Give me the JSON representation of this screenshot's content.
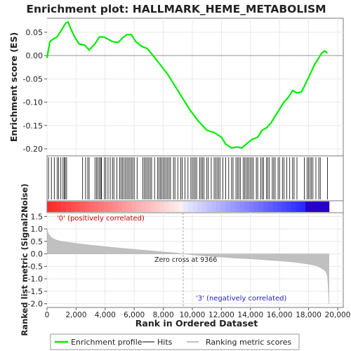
{
  "title": "Enrichment plot: HALLMARK_HEME_METABOLISM",
  "top_ylabel": "Enrichment score (ES)",
  "bottom_ylabel": "Ranked list metric (Signal2Noise)",
  "xlabel": "Rank in Ordered Dataset",
  "pos_label": "'0' (positively correlated)",
  "neg_label": "'3' (negative­ly correlated)",
  "zero_cross_label": "Zero cross at 9366",
  "legend": {
    "enrichment_profile": "Enrichment profile",
    "hits": "Hits",
    "ranking_metric": "Ranking metric scores"
  },
  "colors": {
    "es_line": "#00ee00",
    "pos": "#ff0000",
    "neg": "#0000cc",
    "metric_fill": "#c0c0c0"
  },
  "chart_data": [
    {
      "type": "line",
      "name": "enrichment_profile",
      "x": [
        0,
        200,
        400,
        700,
        1000,
        1300,
        1450,
        1600,
        1900,
        2200,
        2600,
        2900,
        3300,
        3600,
        3900,
        4200,
        4500,
        4900,
        5200,
        5500,
        5800,
        6100,
        6500,
        6900,
        7300,
        7800,
        8300,
        8800,
        9300,
        9800,
        10400,
        11000,
        11500,
        12000,
        12300,
        12700,
        13100,
        13400,
        13700,
        14100,
        14500,
        14800,
        15100,
        15400,
        15700,
        16000,
        16300,
        16600,
        16900,
        17200,
        17500,
        17800,
        18100,
        18400,
        18700,
        18900,
        19100,
        19300
      ],
      "y": [
        -0.005,
        0.03,
        0.035,
        0.04,
        0.055,
        0.07,
        0.072,
        0.06,
        0.04,
        0.025,
        0.022,
        0.012,
        0.025,
        0.04,
        0.04,
        0.035,
        0.03,
        0.028,
        0.038,
        0.045,
        0.045,
        0.03,
        0.02,
        0.015,
        0.0,
        -0.02,
        -0.04,
        -0.065,
        -0.09,
        -0.115,
        -0.14,
        -0.16,
        -0.165,
        -0.175,
        -0.19,
        -0.198,
        -0.196,
        -0.198,
        -0.19,
        -0.18,
        -0.175,
        -0.16,
        -0.155,
        -0.145,
        -0.13,
        -0.115,
        -0.1,
        -0.09,
        -0.075,
        -0.08,
        -0.078,
        -0.06,
        -0.04,
        -0.02,
        -0.005,
        0.005,
        0.01,
        0.005
      ],
      "ylim": [
        -0.215,
        0.08
      ],
      "yticks": [
        0.05,
        0.0,
        -0.05,
        -0.1,
        -0.15,
        -0.2
      ],
      "ytick_labels": [
        "0.05",
        "0.00",
        "-0.05",
        "-0.10",
        "-0.15",
        "-0.20"
      ]
    },
    {
      "type": "scatter",
      "name": "hits",
      "x": [
        100,
        300,
        500,
        700,
        800,
        950,
        1100,
        1200,
        1250,
        1350,
        2450,
        2650,
        2800,
        2900,
        3300,
        3400,
        3500,
        3600,
        3700,
        3750,
        3950,
        4050,
        4200,
        4350,
        4500,
        4600,
        4800,
        5000,
        5100,
        5200,
        5300,
        5400,
        5500,
        5600,
        5700,
        5800,
        5900,
        6000,
        6200,
        6600,
        6700,
        6800,
        6900,
        7000,
        7100,
        7200,
        7400,
        7600,
        7700,
        7800,
        7900,
        8000,
        8100,
        8200,
        8300,
        8400,
        8500,
        8700,
        8800,
        9000,
        9200,
        9300,
        9500,
        9700,
        9900,
        10000,
        10100,
        10200,
        10300,
        10500,
        10600,
        10700,
        10800,
        11000,
        11100,
        11300,
        11500,
        11600,
        11700,
        11800,
        11900,
        12100,
        12300,
        12500,
        12700,
        12800,
        13000,
        13100,
        13200,
        13300,
        13500,
        13600,
        13700,
        13800,
        13900,
        14000,
        14100,
        14200,
        14400,
        14500,
        14700,
        14800,
        14900,
        15100,
        15200,
        15300,
        15500,
        15600,
        15700,
        15900,
        16000,
        16200,
        16300,
        16500,
        16700,
        16900,
        17000,
        17200,
        17700,
        17900,
        18000,
        18100,
        18200,
        18300,
        18500,
        18700,
        18800,
        19300
      ]
    },
    {
      "type": "area",
      "name": "ranking_metric",
      "x": [
        0,
        100,
        300,
        600,
        1000,
        2000,
        3000,
        4000,
        5000,
        6000,
        7000,
        8000,
        9000,
        9366,
        10000,
        11000,
        12000,
        13000,
        14000,
        15000,
        16000,
        17000,
        17500,
        18000,
        18500,
        18800,
        19000,
        19200,
        19300,
        19350,
        19400
      ],
      "y": [
        1.0,
        0.8,
        0.65,
        0.56,
        0.5,
        0.42,
        0.35,
        0.29,
        0.23,
        0.18,
        0.13,
        0.08,
        0.03,
        0.0,
        -0.04,
        -0.09,
        -0.13,
        -0.17,
        -0.2,
        -0.24,
        -0.28,
        -0.33,
        -0.37,
        -0.41,
        -0.47,
        -0.55,
        -0.62,
        -0.72,
        -0.9,
        -1.3,
        -2.0
      ],
      "ylim": [
        -2.15,
        1.65
      ],
      "yticks": [
        1.5,
        1.0,
        0.5,
        0.0,
        -0.5,
        -1.0,
        -1.5,
        -2.0
      ],
      "ytick_labels": [
        "1.5",
        "1.0",
        "0.5",
        "0.0",
        "-0.5",
        "-1.0",
        "-1.5",
        "-2.0"
      ],
      "zero_cross": 9366
    }
  ],
  "x_axis": {
    "xlim": [
      0,
      20000
    ],
    "ticks": [
      0,
      2000,
      4000,
      6000,
      8000,
      10000,
      12000,
      14000,
      16000,
      18000,
      20000
    ],
    "tick_labels": [
      "0",
      "2,000",
      "4,000",
      "6,000",
      "8,000",
      "10,000",
      "12,000",
      "14,000",
      "16,000",
      "18,000",
      "20,000"
    ],
    "n_genes": 19400
  }
}
